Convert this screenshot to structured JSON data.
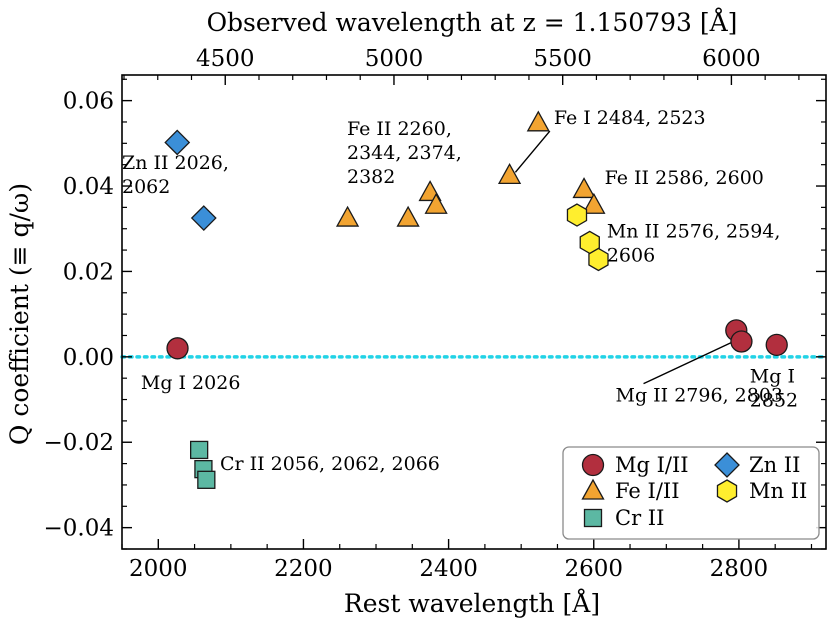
{
  "chart_data": {
    "type": "scatter",
    "xlabel": "Rest wavelength [Å]",
    "ylabel": "Q coefficient (≡ q/ω)",
    "top_xlabel": "Observed wavelength at z = 1.150793 [Å]",
    "redshift": 1.150793,
    "xlim": [
      1950,
      2920
    ],
    "ylim": [
      -0.045,
      0.066
    ],
    "x_ticks": [
      2000,
      2200,
      2400,
      2600,
      2800
    ],
    "x_tick_labels": [
      "2000",
      "2200",
      "2400",
      "2600",
      "2800"
    ],
    "y_ticks": [
      -0.04,
      -0.02,
      0.0,
      0.02,
      0.04,
      0.06
    ],
    "y_tick_labels": [
      "−0.04",
      "−0.02",
      "0.00",
      "0.02",
      "0.04",
      "0.06"
    ],
    "top_ticks": [
      4500,
      5000,
      5500,
      6000
    ],
    "top_tick_labels": [
      "4500",
      "5000",
      "5500",
      "6000"
    ],
    "reference_line": {
      "y": 0.0,
      "color": "#22d3e6",
      "style": "dotted"
    },
    "grid": false,
    "legend_position": "lower-right",
    "legend": [
      {
        "name": "Mg I/II",
        "marker": "circle",
        "color": "#b22f3e"
      },
      {
        "name": "Zn II",
        "marker": "diamond",
        "color": "#3b8fd8"
      },
      {
        "name": "Fe I/II",
        "marker": "triangle",
        "color": "#f2a431"
      },
      {
        "name": "Mn II",
        "marker": "hexagon",
        "color": "#ffee2e"
      },
      {
        "name": "Cr II",
        "marker": "square",
        "color": "#5cb8a3"
      }
    ],
    "series": [
      {
        "name": "Mg I/II",
        "marker": "circle",
        "color": "#b22f3e",
        "points": [
          {
            "x": 2026.5,
            "y": 0.002
          },
          {
            "x": 2796.4,
            "y": 0.0062
          },
          {
            "x": 2803.5,
            "y": 0.0036
          },
          {
            "x": 2852.1,
            "y": 0.0028
          }
        ]
      },
      {
        "name": "Zn II",
        "marker": "diamond",
        "color": "#3b8fd8",
        "points": [
          {
            "x": 2026.1,
            "y": 0.0502
          },
          {
            "x": 2062.7,
            "y": 0.0325
          }
        ]
      },
      {
        "name": "Fe I/II",
        "marker": "triangle",
        "color": "#f2a431",
        "points": [
          {
            "x": 2260.8,
            "y": 0.0325
          },
          {
            "x": 2344.2,
            "y": 0.0325
          },
          {
            "x": 2374.5,
            "y": 0.0385
          },
          {
            "x": 2382.8,
            "y": 0.0355
          },
          {
            "x": 2484.0,
            "y": 0.0425
          },
          {
            "x": 2523.6,
            "y": 0.0548
          },
          {
            "x": 2586.6,
            "y": 0.0392
          },
          {
            "x": 2600.2,
            "y": 0.0355
          }
        ]
      },
      {
        "name": "Mn II",
        "marker": "hexagon",
        "color": "#ffee2e",
        "points": [
          {
            "x": 2576.9,
            "y": 0.0332
          },
          {
            "x": 2594.5,
            "y": 0.0268
          },
          {
            "x": 2606.5,
            "y": 0.0228
          }
        ]
      },
      {
        "name": "Cr II",
        "marker": "square",
        "color": "#5cb8a3",
        "points": [
          {
            "x": 2056.3,
            "y": -0.0218
          },
          {
            "x": 2062.2,
            "y": -0.0263
          },
          {
            "x": 2066.2,
            "y": -0.0288
          }
        ]
      }
    ],
    "annotations": [
      {
        "lines": [
          "Zn II 2026,",
          "2062"
        ],
        "x": 1950,
        "y": 0.044
      },
      {
        "lines": [
          "Fe II 2260,",
          "2344, 2374,",
          "2382"
        ],
        "x": 2260,
        "y": 0.052
      },
      {
        "lines": [
          "Fe I 2484, 2523"
        ],
        "x": 2545,
        "y": 0.0545,
        "leader_to": {
          "x": 2492,
          "y": 0.0432
        }
      },
      {
        "lines": [
          "Fe II 2586, 2600"
        ],
        "x": 2615,
        "y": 0.0405
      },
      {
        "lines": [
          "Mn II 2576, 2594,",
          "2606"
        ],
        "x": 2618,
        "y": 0.028
      },
      {
        "lines": [
          "Mg I 2026"
        ],
        "x": 1976,
        "y": -0.0075
      },
      {
        "lines": [
          "Mg II 2796, 2803"
        ],
        "x": 2630,
        "y": -0.0105,
        "leader_to": {
          "x": 2789,
          "y": 0.0033
        }
      },
      {
        "lines": [
          "Mg I",
          "2852"
        ],
        "x": 2815,
        "y": -0.006
      },
      {
        "lines": [
          "Cr II 2056, 2062, 2066"
        ],
        "x": 2085,
        "y": -0.0265
      }
    ]
  }
}
